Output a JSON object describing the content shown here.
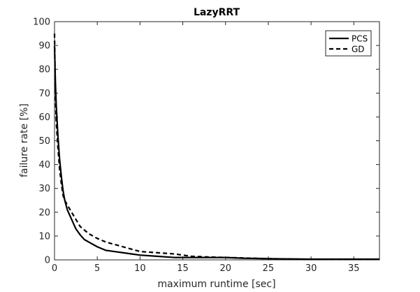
{
  "chart_data": {
    "type": "line",
    "title": "LazyRRT",
    "xlabel": "maximum runtime [sec]",
    "ylabel": "failure rate [%]",
    "xlim": [
      0,
      38
    ],
    "ylim": [
      0,
      100
    ],
    "xticks": [
      0,
      5,
      10,
      15,
      20,
      25,
      30,
      35
    ],
    "yticks": [
      0,
      10,
      20,
      30,
      40,
      50,
      60,
      70,
      80,
      90,
      100
    ],
    "grid": false,
    "legend_position": "top-right",
    "series": [
      {
        "name": "PCS",
        "style": "solid",
        "color": "#000000",
        "x": [
          0,
          0.1,
          0.2,
          0.4,
          0.6,
          0.8,
          1.0,
          1.2,
          1.5,
          2.0,
          2.5,
          3.0,
          3.5,
          4.0,
          5.0,
          6.0,
          7.0,
          8.0,
          9.0,
          10.0,
          12.0,
          14.0,
          16.0,
          18.0,
          20.0,
          22.0,
          25.0,
          30.0,
          35.0,
          38.0
        ],
        "y": [
          90,
          75,
          65,
          52,
          42,
          35,
          29,
          25,
          21,
          17,
          13,
          10.5,
          8.5,
          7.5,
          5.5,
          4,
          3.5,
          3,
          2.5,
          2,
          1.5,
          1,
          1,
          1,
          1,
          0.7,
          0.5,
          0.3,
          0.3,
          0.3
        ]
      },
      {
        "name": "GD",
        "style": "dashed",
        "color": "#000000",
        "x": [
          0,
          0.1,
          0.2,
          0.4,
          0.6,
          0.8,
          1.0,
          1.2,
          1.5,
          2.0,
          2.5,
          3.0,
          3.5,
          4.0,
          5.0,
          6.0,
          7.0,
          8.0,
          9.0,
          10.0,
          12.0,
          14.0,
          16.0,
          18.0,
          20.0,
          22.0,
          25.0,
          30.0,
          35.0,
          38.0
        ],
        "y": [
          95,
          70,
          58,
          47,
          38,
          32,
          27,
          25,
          23,
          20,
          17,
          14,
          12.5,
          11,
          9,
          7.5,
          6.5,
          5.5,
          4.5,
          3.5,
          3,
          2.5,
          1.5,
          1.2,
          1,
          0.8,
          0.5,
          0.2,
          0.2,
          0.2
        ]
      }
    ]
  }
}
